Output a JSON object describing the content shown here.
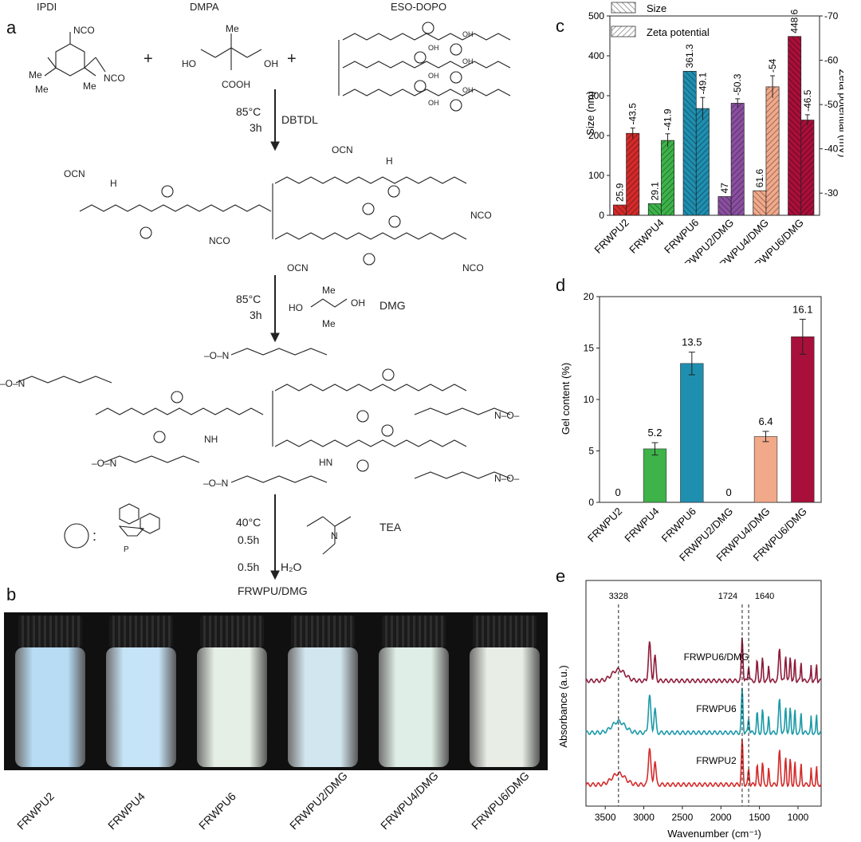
{
  "panels": {
    "a": "a",
    "b": "b",
    "c": "c",
    "d": "d",
    "e": "e"
  },
  "scheme": {
    "reagents": {
      "ipdi": "IPDI",
      "dmpa": "DMPA",
      "eso": "ESO-DOPO"
    },
    "plus": "+",
    "groups": {
      "nco": "NCO",
      "ocn": "OCN",
      "oh": "OH",
      "cooh": "COOH",
      "ho": "HO",
      "me": "Me",
      "h": "H",
      "nh": "NH",
      "hn": "HN",
      "n": "N",
      "o": "O",
      "on": "–O–N",
      "no": "N–O–"
    },
    "step1": {
      "temp": "85°C",
      "time": "3h",
      "reagent": "DBTDL"
    },
    "step2": {
      "temp": "85°C",
      "time": "3h",
      "reagent": "DMG"
    },
    "step3": {
      "temp": "40°C",
      "time1": "0.5h",
      "time2": "0.5h",
      "reagent": "TEA",
      "water": "H₂O"
    },
    "product": "FRWPU/DMG",
    "dopo_legend": ":",
    "dopo_p": "P"
  },
  "vials": [
    "FRWPU2",
    "FRWPU4",
    "FRWPU6",
    "FRWPU2/DMG",
    "FRWPU4/DMG",
    "FRWPU6/DMG"
  ],
  "chart_data": [
    {
      "panel": "c",
      "type": "bar",
      "categories": [
        "FRWPU2",
        "FRWPU4",
        "FRWPU6",
        "FRWPU2/DMG",
        "FRWPU4/DMG",
        "FRWPU6/DMG"
      ],
      "series": [
        {
          "name": "Size",
          "axis": "left",
          "values": [
            25.9,
            29.1,
            361.3,
            47,
            61.6,
            448.6
          ],
          "labels": [
            "25.9",
            "29.1",
            "361.3",
            "47",
            "61.6",
            "448.6"
          ],
          "errors": [
            0,
            0,
            0,
            0,
            0,
            0
          ]
        },
        {
          "name": "Zeta potential",
          "axis": "right",
          "values": [
            -43.5,
            -41.9,
            -49.1,
            -50.3,
            -54,
            -46.5
          ],
          "labels": [
            "-43.5",
            "-41.9",
            "-49.1",
            "-50.3",
            "-54",
            "-46.5"
          ],
          "errors": [
            1.2,
            1.5,
            2.5,
            1.0,
            2.5,
            1.2
          ]
        }
      ],
      "colors": [
        "#d42a2a",
        "#3db34a",
        "#1f8fb0",
        "#8a4fa0",
        "#f1a98a",
        "#a80f3a"
      ],
      "ylabel": "Size (nm)",
      "ylabel_right": "Zeta potential (mV)",
      "ylim": [
        0,
        500
      ],
      "ylim_right": [
        -25,
        -70
      ],
      "yticks": [
        0,
        100,
        200,
        300,
        400,
        500
      ],
      "yticks_right": [
        -30,
        -40,
        -50,
        -60,
        -70
      ],
      "legend": "top-left"
    },
    {
      "panel": "d",
      "type": "bar",
      "categories": [
        "FRWPU2",
        "FRWPU4",
        "FRWPU6",
        "FRWPU2/DMG",
        "FRWPU4/DMG",
        "FRWPU6/DMG"
      ],
      "values": [
        0,
        5.2,
        13.5,
        0,
        6.4,
        16.1
      ],
      "labels": [
        "0",
        "5.2",
        "13.5",
        "0",
        "6.4",
        "16.1"
      ],
      "errors": [
        0,
        0.6,
        1.1,
        0,
        0.5,
        1.7
      ],
      "colors": [
        "#d42a2a",
        "#3db34a",
        "#1f8fb0",
        "#8a4fa0",
        "#f1a98a",
        "#a80f3a"
      ],
      "ylabel": "Gel content (%)",
      "ylim": [
        0,
        20
      ],
      "yticks": [
        0,
        5,
        10,
        15,
        20
      ]
    },
    {
      "panel": "e",
      "type": "line",
      "xlabel": "Wavenumber (cm⁻¹)",
      "ylabel": "Absorbance (a.u.)",
      "xlim": [
        3750,
        700
      ],
      "xticks": [
        3500,
        3000,
        2500,
        2000,
        1500,
        1000
      ],
      "annotations": [
        "3328",
        "1724",
        "1640"
      ],
      "annotation_x": [
        3328,
        1724,
        1640
      ],
      "series": [
        {
          "name": "FRWPU6/DMG",
          "color": "#8e1b3a",
          "offset": 2.1
        },
        {
          "name": "FRWPU6",
          "color": "#1b9aa8",
          "offset": 1.05
        },
        {
          "name": "FRWPU2",
          "color": "#d42a2a",
          "offset": 0
        }
      ],
      "peaks": {
        "x": [
          3328,
          2925,
          2855,
          1724,
          1640,
          1530,
          1460,
          1380,
          1240,
          1160,
          1100,
          1040,
          960,
          830,
          760
        ],
        "heights": [
          0.25,
          0.85,
          0.55,
          1.0,
          0.35,
          0.45,
          0.5,
          0.35,
          0.75,
          0.6,
          0.55,
          0.5,
          0.45,
          0.35,
          0.4
        ],
        "widths": [
          120,
          22,
          18,
          14,
          12,
          12,
          12,
          10,
          16,
          12,
          12,
          10,
          10,
          8,
          8
        ]
      }
    }
  ]
}
